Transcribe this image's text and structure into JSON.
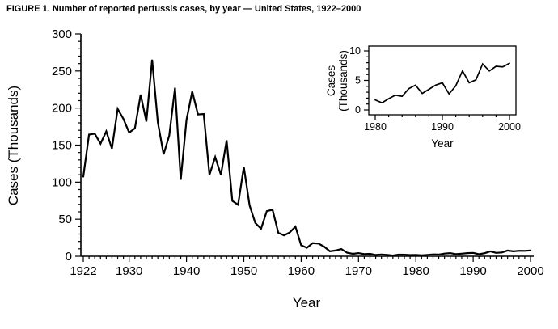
{
  "figure_title": "FIGURE 1. Number of reported pertussis cases, by year — United States, 1922–2000",
  "chart_data": [
    {
      "id": "main",
      "type": "line",
      "title": "",
      "xlabel": "Year",
      "ylabel": "Cases (Thousands)",
      "xlim": [
        1922,
        2000
      ],
      "ylim": [
        0,
        300
      ],
      "x_ticks": [
        1922,
        1930,
        1940,
        1950,
        1960,
        1970,
        1980,
        1990,
        2000
      ],
      "y_ticks": [
        0,
        50,
        100,
        150,
        200,
        250,
        300
      ],
      "x_minor_step": 1,
      "y_minor_step": 10,
      "grid": false,
      "line_color": "#000000",
      "x": [
        1922,
        1923,
        1924,
        1925,
        1926,
        1927,
        1928,
        1929,
        1930,
        1931,
        1932,
        1933,
        1934,
        1935,
        1936,
        1937,
        1938,
        1939,
        1940,
        1941,
        1942,
        1943,
        1944,
        1945,
        1946,
        1947,
        1948,
        1949,
        1950,
        1951,
        1952,
        1953,
        1954,
        1955,
        1956,
        1957,
        1958,
        1959,
        1960,
        1961,
        1962,
        1963,
        1964,
        1965,
        1966,
        1967,
        1968,
        1969,
        1970,
        1971,
        1972,
        1973,
        1974,
        1975,
        1976,
        1977,
        1978,
        1979,
        1980,
        1981,
        1982,
        1983,
        1984,
        1985,
        1986,
        1987,
        1988,
        1989,
        1990,
        1991,
        1992,
        1993,
        1994,
        1995,
        1996,
        1997,
        1998,
        1999,
        2000
      ],
      "values": [
        107.5,
        164.2,
        165.4,
        152.0,
        168.5,
        145.3,
        198.9,
        185.4,
        166.9,
        172.6,
        218.1,
        181.7,
        265.3,
        180.5,
        137.6,
        162.9,
        227.3,
        103.2,
        183.9,
        222.2,
        191.4,
        191.9,
        109.9,
        133.8,
        109.9,
        156.5,
        74.7,
        69.5,
        120.7,
        68.7,
        45.0,
        37.1,
        60.9,
        62.8,
        31.7,
        28.3,
        32.1,
        40.0,
        14.8,
        11.5,
        17.7,
        17.1,
        13.0,
        6.8,
        7.7,
        9.7,
        4.8,
        3.3,
        4.2,
        3.0,
        3.3,
        1.8,
        2.4,
        1.7,
        1.0,
        2.2,
        2.1,
        1.6,
        1.7,
        1.2,
        1.9,
        2.5,
        2.3,
        3.6,
        4.2,
        2.8,
        3.5,
        4.2,
        4.6,
        2.7,
        4.1,
        6.6,
        4.6,
        5.1,
        7.8,
        6.6,
        7.4,
        7.3,
        7.9
      ]
    },
    {
      "id": "inset",
      "type": "line",
      "title": "",
      "xlabel": "Year",
      "ylabel": "Cases (Thousands)",
      "xlim": [
        1980,
        2000
      ],
      "ylim": [
        0,
        10
      ],
      "x_ticks": [
        1980,
        1990,
        2000
      ],
      "y_ticks": [
        0,
        5,
        10
      ],
      "x_minor_step": 2,
      "y_minor_step": 1,
      "grid": false,
      "line_color": "#000000",
      "x": [
        1980,
        1981,
        1982,
        1983,
        1984,
        1985,
        1986,
        1987,
        1988,
        1989,
        1990,
        1991,
        1992,
        1993,
        1994,
        1995,
        1996,
        1997,
        1998,
        1999,
        2000
      ],
      "values": [
        1.7,
        1.2,
        1.9,
        2.5,
        2.3,
        3.6,
        4.2,
        2.8,
        3.5,
        4.2,
        4.6,
        2.7,
        4.1,
        6.6,
        4.6,
        5.1,
        7.8,
        6.6,
        7.4,
        7.3,
        7.9
      ]
    }
  ]
}
